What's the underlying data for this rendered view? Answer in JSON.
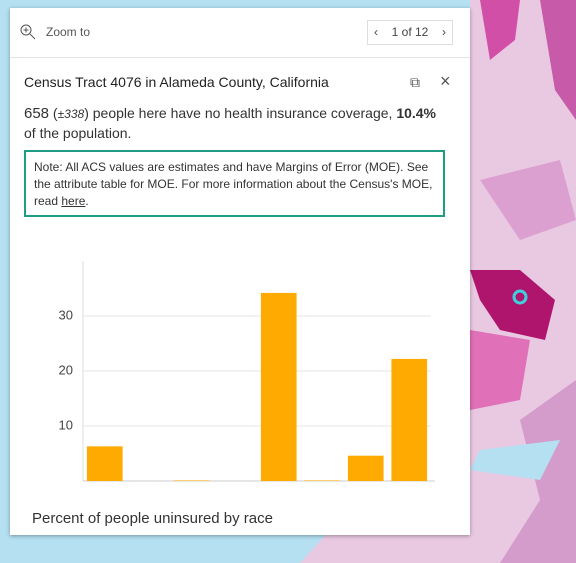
{
  "header": {
    "zoom": "Zoom to",
    "pager": "1 of 12"
  },
  "popup": {
    "title": "Census Tract 4076 in Alameda County, California",
    "summary": [
      "658",
      " (",
      "±338",
      ") people here have no health insurance coverage, ",
      "10.4%",
      " of the population."
    ],
    "note": [
      "Note: All ACS values are estimates and have Margins of Error (MOE). See the attribute table for MOE. For more information about the Census's MOE, read ",
      "here",
      "."
    ]
  },
  "chart_data": {
    "type": "bar",
    "title": "Percent of people uninsured by race",
    "categories": [
      null,
      null,
      null,
      null,
      null,
      null,
      null,
      null
    ],
    "values": [
      6.3,
      0,
      0.1,
      0,
      34.2,
      0.1,
      4.6,
      22.2
    ],
    "color": "#ffaa00",
    "ylim": [
      0,
      40
    ],
    "yticks": [
      10,
      20,
      30
    ],
    "grid": true
  }
}
